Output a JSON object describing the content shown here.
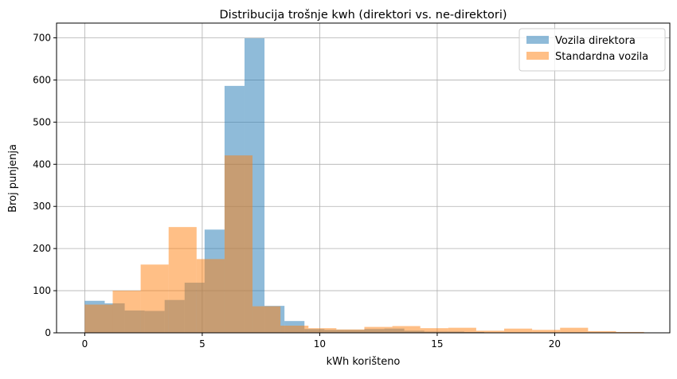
{
  "chart_data": {
    "type": "bar",
    "title": "Distribucija trošnje kwh (direktori vs. ne-direktori)",
    "xlabel": "kWh korišteno",
    "ylabel": "Broj punjenja",
    "xlim": [
      -1.2,
      24.9
    ],
    "ylim": [
      0,
      735
    ],
    "x_ticks": [
      0,
      5,
      10,
      15,
      20
    ],
    "x_tick_labels": [
      "0",
      "5",
      "10",
      "15",
      "20"
    ],
    "y_ticks": [
      0,
      100,
      200,
      300,
      400,
      500,
      600,
      700
    ],
    "y_tick_labels": [
      "0",
      "100",
      "200",
      "300",
      "400",
      "500",
      "600",
      "700"
    ],
    "grid": true,
    "legend_position": "top-right",
    "series": [
      {
        "name": "Vozila direktora",
        "color": "#1f77b4",
        "opacity": 0.5,
        "bin_edges": [
          0.0,
          0.85,
          1.7,
          2.55,
          3.4,
          4.25,
          5.1,
          5.95,
          6.8,
          7.65,
          8.5,
          9.35,
          10.2,
          11.05,
          11.9,
          12.75,
          13.6,
          14.45,
          15.3,
          16.15,
          17.0
        ],
        "values": [
          76,
          70,
          53,
          52,
          78,
          119,
          245,
          586,
          699,
          64,
          28,
          9,
          7,
          7,
          9,
          10,
          5,
          3,
          3,
          2
        ]
      },
      {
        "name": "Standardna vozila",
        "color": "#ff7f0e",
        "opacity": 0.5,
        "bin_edges": [
          0.0,
          1.19,
          2.38,
          3.57,
          4.76,
          5.95,
          7.14,
          8.33,
          9.52,
          10.71,
          11.9,
          13.09,
          14.28,
          15.47,
          16.66,
          17.85,
          19.04,
          20.23,
          21.42,
          22.61,
          23.8
        ],
        "values": [
          67,
          100,
          162,
          251,
          175,
          421,
          63,
          17,
          11,
          8,
          14,
          16,
          11,
          12,
          5,
          10,
          7,
          12,
          4,
          2
        ]
      }
    ]
  }
}
